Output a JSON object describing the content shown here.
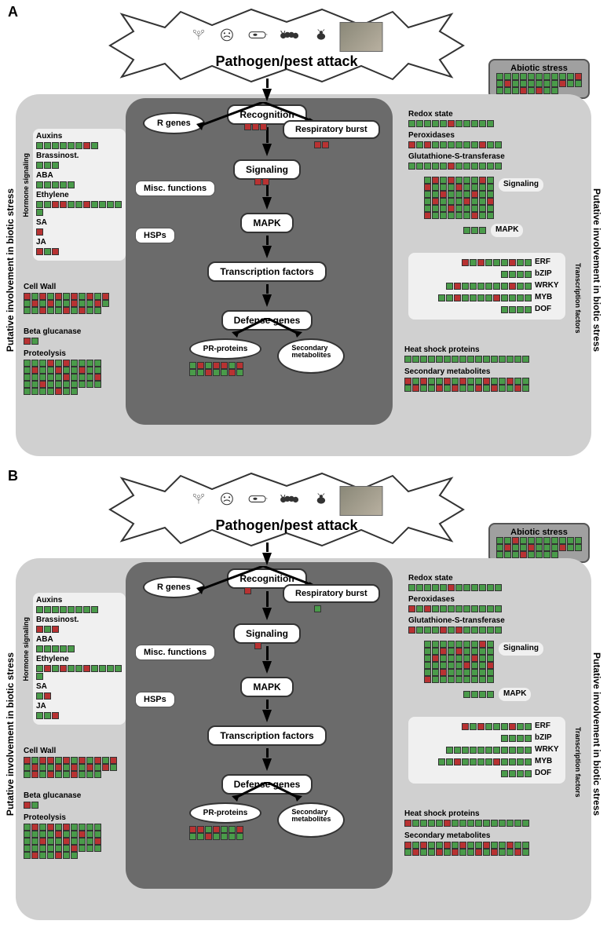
{
  "colors": {
    "green": "#4a9b4a",
    "red": "#b83232",
    "outer_bg": "#d0d0d0",
    "inner_bg": "#6b6b6b",
    "abiotic_bg": "#a0a0a0"
  },
  "cascade": {
    "title": "Pathogen/pest attack",
    "steps": [
      "Recognition",
      "Signaling",
      "MAPK",
      "Transcription factors",
      "Defense genes"
    ],
    "r_genes": "R genes",
    "respiratory": "Respiratory burst",
    "pr_proteins": "PR-proteins",
    "secondary_met": "Secondary metabolites",
    "misc": "Misc. functions",
    "hsps": "HSPs"
  },
  "side_label": "Putative involvement in biotic stress",
  "hormone_label": "Hormone signaling",
  "tf_label": "Transcription factors",
  "abiotic_label": "Abiotic stress",
  "panels": {
    "A": {
      "label": "A",
      "abiotic": [
        [
          0,
          0,
          0,
          0,
          0,
          0,
          0,
          0,
          0,
          0,
          1
        ],
        [
          0,
          1,
          0,
          0,
          0,
          0,
          0,
          0,
          1,
          0,
          0
        ],
        [
          0,
          0,
          0,
          1,
          0,
          1,
          0,
          0
        ]
      ],
      "recognition_hm": [
        1,
        1,
        1
      ],
      "signaling_hm": [
        1,
        1
      ],
      "respiratory_hm": [
        1,
        1
      ],
      "hormones": {
        "Auxins": [
          0,
          0,
          0,
          0,
          0,
          0,
          1,
          0
        ],
        "Brassinost.": [
          0,
          0,
          0
        ],
        "ABA": [
          0,
          0,
          0,
          0,
          0
        ],
        "Ethylene": [
          0,
          0,
          1,
          1,
          0,
          0,
          1,
          0,
          0,
          0,
          0,
          0
        ],
        "SA": [
          1
        ],
        "JA": [
          1,
          0,
          1
        ]
      },
      "cell_wall": [
        [
          1,
          0,
          1,
          0,
          1,
          0,
          1,
          0,
          1,
          0,
          1
        ],
        [
          0,
          1,
          0,
          1,
          0,
          0,
          1,
          0,
          0,
          1,
          0
        ],
        [
          0,
          0,
          1,
          0,
          0,
          1,
          0,
          1,
          0,
          0
        ]
      ],
      "beta_gluc": [
        1,
        0
      ],
      "proteolysis": [
        [
          0,
          0,
          0,
          1,
          0,
          1,
          0,
          0,
          0,
          0
        ],
        [
          0,
          1,
          0,
          0,
          1,
          0,
          0,
          1,
          0,
          0
        ],
        [
          0,
          0,
          0,
          0,
          0,
          1,
          0,
          0,
          0,
          1
        ],
        [
          0,
          0,
          1,
          0,
          0,
          0,
          0,
          0,
          0,
          0
        ],
        [
          0,
          0,
          0,
          0,
          1,
          0,
          0
        ]
      ],
      "pr_proteins": [
        [
          0,
          1,
          0,
          1,
          1,
          0,
          1
        ],
        [
          0,
          0,
          1,
          0,
          0,
          1,
          0
        ]
      ],
      "redox": [
        0,
        0,
        0,
        0,
        0,
        1,
        0,
        0,
        0,
        0,
        0
      ],
      "peroxidases": [
        1,
        0,
        1,
        0,
        0,
        0,
        0,
        0,
        0,
        1,
        0,
        0
      ],
      "glut_s_trans": [
        0,
        0,
        0,
        0,
        0,
        1,
        0,
        0,
        0,
        0,
        0,
        0
      ],
      "signaling_block": [
        [
          0,
          1,
          0,
          1,
          0,
          0,
          0,
          1,
          0
        ],
        [
          1,
          0,
          0,
          0,
          1,
          0,
          0,
          0,
          0
        ],
        [
          0,
          0,
          1,
          0,
          0,
          0,
          1,
          0,
          0
        ],
        [
          0,
          1,
          0,
          0,
          0,
          1,
          0,
          0,
          1
        ],
        [
          0,
          0,
          0,
          1,
          0,
          0,
          0,
          0,
          0
        ],
        [
          1,
          0,
          0,
          0,
          0,
          0,
          1,
          0,
          0
        ]
      ],
      "mapk": [
        0,
        0,
        0
      ],
      "tf": {
        "ERF": [
          1,
          0,
          1,
          0,
          0,
          0,
          1,
          0,
          0
        ],
        "bZIP": [
          0,
          0,
          0,
          0
        ],
        "WRKY": [
          0,
          1,
          0,
          0,
          0,
          0,
          0,
          0,
          1,
          0,
          0
        ],
        "MYB": [
          0,
          0,
          1,
          0,
          0,
          0,
          0,
          1,
          0,
          0,
          0,
          0
        ],
        "DOF": [
          0,
          0,
          0,
          0
        ]
      },
      "hsp": [
        0,
        0,
        0,
        0,
        0,
        0,
        0,
        0,
        0,
        0,
        0,
        0,
        0,
        0,
        0,
        0
      ],
      "sec_met": [
        [
          1,
          0,
          1,
          0,
          0,
          1,
          0,
          1,
          0,
          0,
          1,
          0,
          0,
          1,
          0,
          0
        ],
        [
          0,
          1,
          0,
          0,
          1,
          0,
          1,
          0,
          0,
          1,
          0,
          1,
          0,
          0,
          1,
          0
        ]
      ]
    },
    "B": {
      "label": "B",
      "abiotic": [
        [
          0,
          0,
          1,
          0,
          0,
          0,
          0,
          0,
          0,
          0,
          0
        ],
        [
          0,
          1,
          0,
          0,
          1,
          0,
          0,
          0,
          1,
          0,
          0
        ],
        [
          0,
          0,
          0,
          1,
          0,
          0,
          0,
          0
        ]
      ],
      "recognition_hm": [
        1
      ],
      "signaling_hm": [
        1
      ],
      "respiratory_hm": [
        0
      ],
      "hormones": {
        "Auxins": [
          0,
          0,
          0,
          0,
          0,
          0,
          0,
          0
        ],
        "Brassinost.": [
          1,
          0,
          1
        ],
        "ABA": [
          0,
          0,
          0,
          0,
          0
        ],
        "Ethylene": [
          0,
          1,
          0,
          1,
          0,
          0,
          1,
          0,
          0,
          0,
          0,
          0
        ],
        "SA": [
          0,
          1
        ],
        "JA": [
          0,
          0,
          1
        ]
      },
      "cell_wall": [
        [
          1,
          0,
          1,
          1,
          0,
          1,
          0,
          1,
          0,
          1,
          0,
          1
        ],
        [
          0,
          1,
          0,
          0,
          1,
          0,
          1,
          0,
          1,
          0,
          1,
          0
        ],
        [
          0,
          1,
          0,
          1,
          0,
          0,
          1,
          0,
          0,
          0
        ]
      ],
      "beta_gluc": [
        1,
        0
      ],
      "proteolysis": [
        [
          0,
          1,
          0,
          1,
          0,
          1,
          0,
          0,
          0,
          0
        ],
        [
          0,
          0,
          0,
          0,
          1,
          0,
          0,
          1,
          0,
          0
        ],
        [
          0,
          0,
          1,
          0,
          0,
          1,
          0,
          0,
          0,
          1
        ],
        [
          0,
          0,
          0,
          0,
          0,
          0,
          1,
          0,
          0,
          0
        ],
        [
          0,
          1,
          0,
          0,
          1,
          0,
          0
        ]
      ],
      "pr_proteins": [
        [
          1,
          1,
          0,
          1,
          0,
          0,
          1
        ],
        [
          0,
          0,
          1,
          0,
          0,
          0,
          0
        ]
      ],
      "redox": [
        0,
        0,
        0,
        0,
        0,
        1,
        0,
        0,
        0,
        0,
        0,
        0
      ],
      "peroxidases": [
        1,
        0,
        1,
        0,
        0,
        0,
        0,
        0,
        0,
        0,
        0,
        0
      ],
      "glut_s_trans": [
        1,
        0,
        0,
        0,
        1,
        0,
        1,
        0,
        0,
        0,
        0,
        0
      ],
      "signaling_block": [
        [
          0,
          0,
          0,
          0,
          0,
          0,
          0,
          1,
          0
        ],
        [
          0,
          0,
          1,
          0,
          1,
          0,
          0,
          0,
          0
        ],
        [
          0,
          1,
          0,
          0,
          0,
          0,
          1,
          0,
          0
        ],
        [
          0,
          0,
          0,
          0,
          0,
          1,
          0,
          0,
          1
        ],
        [
          0,
          0,
          1,
          0,
          0,
          0,
          0,
          0,
          0
        ],
        [
          1,
          0,
          0,
          0,
          0,
          0,
          0,
          0,
          0
        ]
      ],
      "mapk": [
        0,
        0,
        0,
        0
      ],
      "tf": {
        "ERF": [
          1,
          0,
          1,
          0,
          0,
          0,
          1,
          0,
          0
        ],
        "bZIP": [
          0,
          0,
          0,
          0
        ],
        "WRKY": [
          0,
          0,
          0,
          0,
          0,
          0,
          0,
          0,
          0,
          0,
          0
        ],
        "MYB": [
          0,
          0,
          1,
          0,
          0,
          0,
          0,
          1,
          0,
          0,
          0,
          0
        ],
        "DOF": [
          0,
          0,
          0,
          0
        ]
      },
      "hsp": [
        1,
        0,
        0,
        0,
        0,
        1,
        0,
        0,
        0,
        0,
        0,
        0,
        0,
        0,
        0,
        0
      ],
      "sec_met": [
        [
          1,
          0,
          1,
          0,
          0,
          1,
          0,
          1,
          0,
          0,
          1,
          0,
          0,
          1,
          0,
          0
        ],
        [
          0,
          1,
          0,
          0,
          1,
          0,
          1,
          0,
          0,
          1,
          0,
          1,
          0,
          0,
          1,
          0
        ]
      ]
    }
  }
}
